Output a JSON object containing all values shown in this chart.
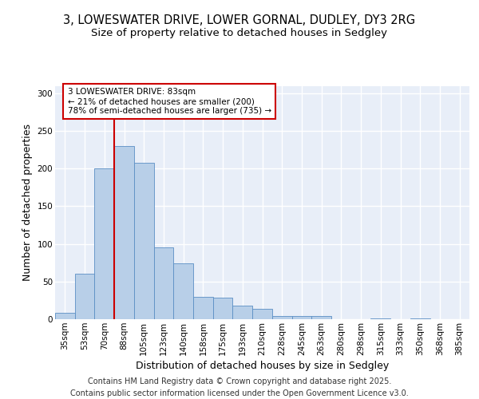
{
  "title_line1": "3, LOWESWATER DRIVE, LOWER GORNAL, DUDLEY, DY3 2RG",
  "title_line2": "Size of property relative to detached houses in Sedgley",
  "xlabel": "Distribution of detached houses by size in Sedgley",
  "ylabel": "Number of detached properties",
  "categories": [
    "35sqm",
    "53sqm",
    "70sqm",
    "88sqm",
    "105sqm",
    "123sqm",
    "140sqm",
    "158sqm",
    "175sqm",
    "193sqm",
    "210sqm",
    "228sqm",
    "245sqm",
    "263sqm",
    "280sqm",
    "298sqm",
    "315sqm",
    "333sqm",
    "350sqm",
    "368sqm",
    "385sqm"
  ],
  "values": [
    8,
    60,
    200,
    230,
    208,
    95,
    74,
    30,
    29,
    18,
    14,
    4,
    4,
    4,
    0,
    0,
    1,
    0,
    1,
    0,
    0
  ],
  "bar_color": "#b8cfe8",
  "bar_edge_color": "#5b8ec4",
  "bg_color": "#e8eef8",
  "grid_color": "#ffffff",
  "vline_color": "#cc0000",
  "annotation_text": "3 LOWESWATER DRIVE: 83sqm\n← 21% of detached houses are smaller (200)\n78% of semi-detached houses are larger (735) →",
  "annotation_box_color": "#ffffff",
  "annotation_box_edge": "#cc0000",
  "ylim": [
    0,
    310
  ],
  "yticks": [
    0,
    50,
    100,
    150,
    200,
    250,
    300
  ],
  "footer": "Contains HM Land Registry data © Crown copyright and database right 2025.\nContains public sector information licensed under the Open Government Licence v3.0.",
  "title_fontsize": 10.5,
  "subtitle_fontsize": 9.5,
  "axis_label_fontsize": 9,
  "tick_fontsize": 7.5,
  "annotation_fontsize": 7.5,
  "footer_fontsize": 7
}
